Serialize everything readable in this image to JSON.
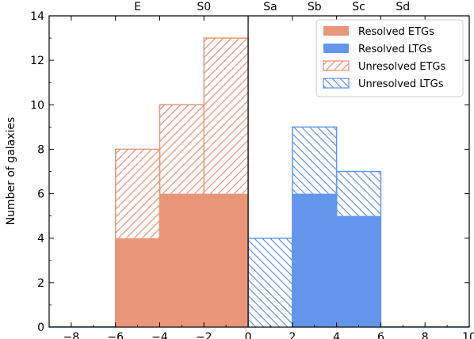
{
  "chart_data": {
    "type": "bar",
    "ylabel": "Number of galaxies",
    "xlim": [
      -9,
      10
    ],
    "ylim": [
      0,
      14
    ],
    "x_ticks": [
      -8,
      -6,
      -4,
      -2,
      0,
      2,
      4,
      6,
      8,
      10
    ],
    "x_tick_labels": [
      "−8",
      "−6",
      "−4",
      "−2",
      "0",
      "2",
      "4",
      "6",
      "8",
      "10"
    ],
    "y_ticks": [
      0,
      2,
      4,
      6,
      8,
      10,
      12,
      14
    ],
    "y_tick_labels": [
      "0",
      "2",
      "4",
      "6",
      "8",
      "10",
      "12",
      "14"
    ],
    "top_axis_labels": [
      {
        "x": -5,
        "label": "E"
      },
      {
        "x": -2,
        "label": "S0"
      },
      {
        "x": 1,
        "label": "Sa"
      },
      {
        "x": 3,
        "label": "Sb"
      },
      {
        "x": 5,
        "label": "Sc"
      },
      {
        "x": 7,
        "label": "Sd"
      }
    ],
    "vertical_line_x": 0,
    "bin_edges": [
      -6,
      -4,
      -2,
      0,
      2,
      4,
      6
    ],
    "series": [
      {
        "name": "Resolved ETGs",
        "style": "filled",
        "color": "#E9967A",
        "bins": [
          {
            "x0": -6,
            "x1": -4,
            "value": 4
          },
          {
            "x0": -4,
            "x1": -2,
            "value": 6
          },
          {
            "x0": -2,
            "x1": 0,
            "value": 6
          }
        ]
      },
      {
        "name": "Resolved LTGs",
        "style": "filled",
        "color": "#6495ED",
        "bins": [
          {
            "x0": 2,
            "x1": 4,
            "value": 6
          },
          {
            "x0": 4,
            "x1": 6,
            "value": 5
          }
        ]
      },
      {
        "name": "Unresolved ETGs",
        "style": "hatch",
        "color": "#E9967A",
        "bins": [
          {
            "x0": -6,
            "x1": -4,
            "value": 8
          },
          {
            "x0": -4,
            "x1": -2,
            "value": 10
          },
          {
            "x0": -2,
            "x1": 0,
            "value": 13
          }
        ]
      },
      {
        "name": "Unresolved LTGs",
        "style": "hatch",
        "color": "#6495ED",
        "bins": [
          {
            "x0": 0,
            "x1": 2,
            "value": 4
          },
          {
            "x0": 2,
            "x1": 4,
            "value": 9
          },
          {
            "x0": 4,
            "x1": 6,
            "value": 7
          }
        ]
      }
    ],
    "legend_position": "top-right",
    "grid": false
  }
}
